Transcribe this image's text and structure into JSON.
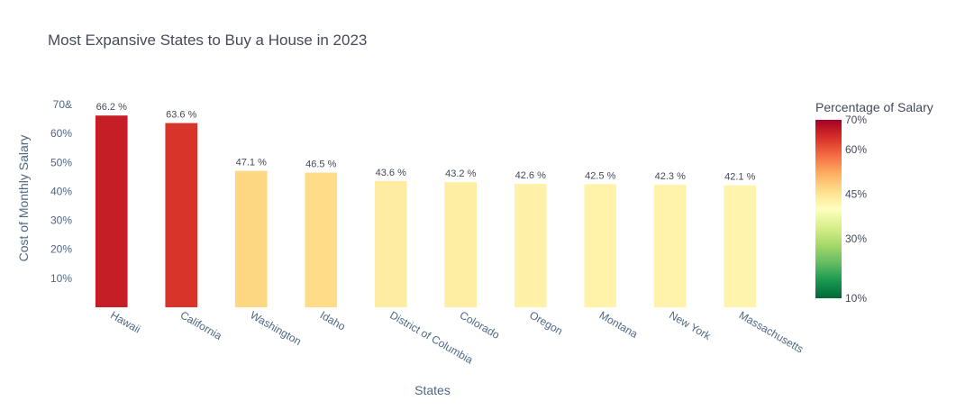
{
  "chart_data": {
    "type": "bar",
    "title": "Most Expansive States to Buy a House in 2023",
    "xlabel": "States",
    "ylabel": "Cost of Monthly Salary",
    "categories": [
      "Hawaii",
      "California",
      "Washington",
      "Idaho",
      "District of Columbia",
      "Colorado",
      "Oregon",
      "Montana",
      "New York",
      "Massachusetts"
    ],
    "values": [
      66.2,
      63.6,
      47.1,
      46.5,
      43.6,
      43.2,
      42.6,
      42.5,
      42.3,
      42.1
    ],
    "value_labels": [
      "66.2 %",
      "63.6 %",
      "47.1 %",
      "46.5 %",
      "43.6 %",
      "43.2 %",
      "42.6 %",
      "42.5 %",
      "42.3 %",
      "42.1 %"
    ],
    "ylim": [
      0,
      70
    ],
    "y_ticks": [
      {
        "value": 10,
        "label": "10%"
      },
      {
        "value": 20,
        "label": "20%"
      },
      {
        "value": 30,
        "label": "30%"
      },
      {
        "value": 40,
        "label": "40%"
      },
      {
        "value": 50,
        "label": "50%"
      },
      {
        "value": 60,
        "label": "60%"
      },
      {
        "value": 70,
        "label": "70&"
      }
    ],
    "grid": false,
    "colorbar": {
      "title": "Percentage of Salary",
      "range": [
        10,
        70
      ],
      "ticks": [
        {
          "value": 70,
          "label": "70%"
        },
        {
          "value": 60,
          "label": "60%"
        },
        {
          "value": 45,
          "label": "45%"
        },
        {
          "value": 30,
          "label": "30%"
        },
        {
          "value": 10,
          "label": "10%"
        }
      ],
      "colorscale": [
        {
          "stop": 0.0,
          "color": "#006837"
        },
        {
          "stop": 0.1,
          "color": "#1a9850"
        },
        {
          "stop": 0.2,
          "color": "#66bd63"
        },
        {
          "stop": 0.3,
          "color": "#a6d96a"
        },
        {
          "stop": 0.4,
          "color": "#d9ef8b"
        },
        {
          "stop": 0.5,
          "color": "#ffffbf"
        },
        {
          "stop": 0.6,
          "color": "#fee08b"
        },
        {
          "stop": 0.7,
          "color": "#fdae61"
        },
        {
          "stop": 0.8,
          "color": "#f46d43"
        },
        {
          "stop": 0.9,
          "color": "#d73027"
        },
        {
          "stop": 1.0,
          "color": "#a50026"
        }
      ]
    }
  }
}
